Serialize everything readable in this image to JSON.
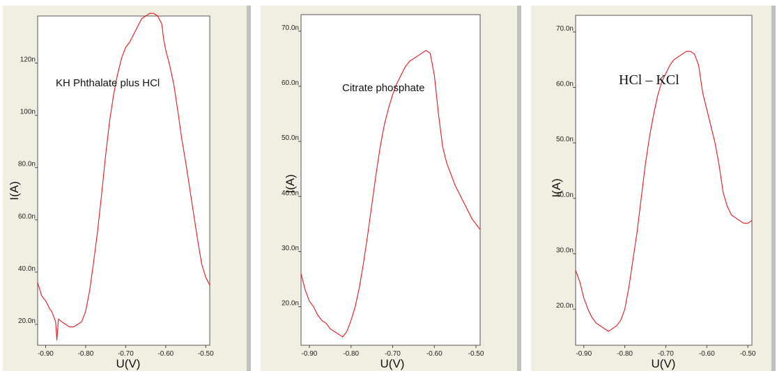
{
  "chart_data": [
    {
      "type": "line",
      "title": "KH Phthalate plus HCl",
      "xlabel": "U(V)",
      "ylabel": "I(A)",
      "xlim": [
        -0.92,
        -0.49
      ],
      "ylim": [
        12,
        138
      ],
      "xticks": [
        -0.9,
        -0.8,
        -0.7,
        -0.6,
        -0.5
      ],
      "xtick_labels": [
        "-0.90",
        "-0.80",
        "-0.70",
        "-0.60",
        "-0.50"
      ],
      "yticks": [
        20,
        40,
        60,
        80,
        100,
        120
      ],
      "ytick_labels": [
        "20.0n",
        "40.0n",
        "60.0n",
        "80.0n",
        "100n",
        "120n"
      ],
      "series": [
        {
          "color": "#e8141c",
          "x": [
            -0.92,
            -0.91,
            -0.9,
            -0.89,
            -0.885,
            -0.88,
            -0.875,
            -0.872,
            -0.868,
            -0.86,
            -0.85,
            -0.84,
            -0.83,
            -0.82,
            -0.81,
            -0.8,
            -0.79,
            -0.78,
            -0.77,
            -0.76,
            -0.75,
            -0.74,
            -0.73,
            -0.72,
            -0.71,
            -0.7,
            -0.69,
            -0.68,
            -0.67,
            -0.66,
            -0.65,
            -0.64,
            -0.63,
            -0.62,
            -0.61,
            -0.605,
            -0.6,
            -0.59,
            -0.58,
            -0.57,
            -0.56,
            -0.55,
            -0.54,
            -0.53,
            -0.52,
            -0.51,
            -0.5,
            -0.49
          ],
          "y": [
            36,
            31,
            29,
            26,
            25,
            23,
            21,
            14,
            22,
            21,
            20,
            19,
            19,
            20,
            21,
            25,
            33,
            44,
            56,
            70,
            85,
            98,
            108,
            116,
            122,
            126,
            128,
            131,
            134,
            137,
            138,
            139,
            139,
            138,
            135,
            129,
            125,
            119,
            112,
            102,
            91,
            82,
            72,
            62,
            52,
            43,
            38,
            35
          ]
        }
      ]
    },
    {
      "type": "line",
      "title": "Citrate phosphate",
      "xlabel": "U(V)",
      "ylabel": "I(A)",
      "xlim": [
        -0.92,
        -0.49
      ],
      "ylim": [
        13,
        73
      ],
      "xticks": [
        -0.9,
        -0.8,
        -0.7,
        -0.6,
        -0.5
      ],
      "xtick_labels": [
        "-0.90",
        "-0.80",
        "-0.70",
        "-0.60",
        "-0.50"
      ],
      "yticks": [
        20,
        30,
        40,
        50,
        60,
        70
      ],
      "ytick_labels": [
        "20.0n",
        "30.0n",
        "40.0n",
        "50.0n",
        "60.0n",
        "70.0n"
      ],
      "series": [
        {
          "color": "#e8141c",
          "x": [
            -0.92,
            -0.91,
            -0.9,
            -0.89,
            -0.88,
            -0.87,
            -0.86,
            -0.85,
            -0.84,
            -0.83,
            -0.82,
            -0.81,
            -0.8,
            -0.79,
            -0.78,
            -0.77,
            -0.76,
            -0.75,
            -0.74,
            -0.73,
            -0.72,
            -0.71,
            -0.7,
            -0.69,
            -0.68,
            -0.67,
            -0.66,
            -0.65,
            -0.64,
            -0.63,
            -0.62,
            -0.61,
            -0.6,
            -0.59,
            -0.58,
            -0.57,
            -0.56,
            -0.55,
            -0.54,
            -0.53,
            -0.52,
            -0.51,
            -0.5,
            -0.49
          ],
          "y": [
            26,
            23,
            21,
            20,
            18.5,
            17.5,
            17,
            16,
            15.5,
            15,
            14.5,
            15.5,
            17.5,
            20,
            23.5,
            28,
            33,
            38.5,
            44,
            49,
            53,
            56,
            58.5,
            60.5,
            62,
            63.5,
            64.5,
            65,
            65.5,
            66,
            66.5,
            66,
            62,
            55,
            49,
            46,
            44,
            42,
            40.5,
            39,
            37.5,
            36,
            35,
            34
          ]
        }
      ]
    },
    {
      "type": "line",
      "title": "HCl – KCl",
      "xlabel": "U(V)",
      "ylabel": "I(A)",
      "xlim": [
        -0.92,
        -0.49
      ],
      "ylim": [
        13.5,
        73
      ],
      "xticks": [
        -0.9,
        -0.8,
        -0.7,
        -0.6,
        -0.5
      ],
      "xtick_labels": [
        "-0.90",
        "-0.80",
        "-0.70",
        "-0.60",
        "-0.50"
      ],
      "yticks": [
        20,
        30,
        40,
        50,
        60,
        70
      ],
      "ytick_labels": [
        "20.0n",
        "30.0n",
        "40.0n",
        "50.0n",
        "60.0n",
        "70.0n"
      ],
      "series": [
        {
          "color": "#e8141c",
          "x": [
            -0.92,
            -0.91,
            -0.9,
            -0.89,
            -0.88,
            -0.87,
            -0.86,
            -0.85,
            -0.84,
            -0.83,
            -0.82,
            -0.81,
            -0.8,
            -0.79,
            -0.78,
            -0.77,
            -0.76,
            -0.75,
            -0.74,
            -0.73,
            -0.72,
            -0.71,
            -0.7,
            -0.69,
            -0.68,
            -0.67,
            -0.66,
            -0.65,
            -0.64,
            -0.63,
            -0.62,
            -0.61,
            -0.6,
            -0.59,
            -0.58,
            -0.57,
            -0.56,
            -0.55,
            -0.54,
            -0.53,
            -0.52,
            -0.51,
            -0.5,
            -0.49
          ],
          "y": [
            27,
            25,
            22,
            20,
            18.5,
            17.5,
            17,
            16.5,
            16,
            16.5,
            17,
            18,
            20,
            24,
            29,
            34,
            40,
            46,
            51,
            55,
            58.5,
            61,
            62.5,
            64,
            65,
            65.5,
            66,
            66.5,
            66.5,
            66,
            64,
            59,
            56,
            53,
            50,
            46,
            41,
            38.5,
            37,
            36.5,
            36,
            35.5,
            35.5,
            36
          ]
        }
      ]
    }
  ]
}
